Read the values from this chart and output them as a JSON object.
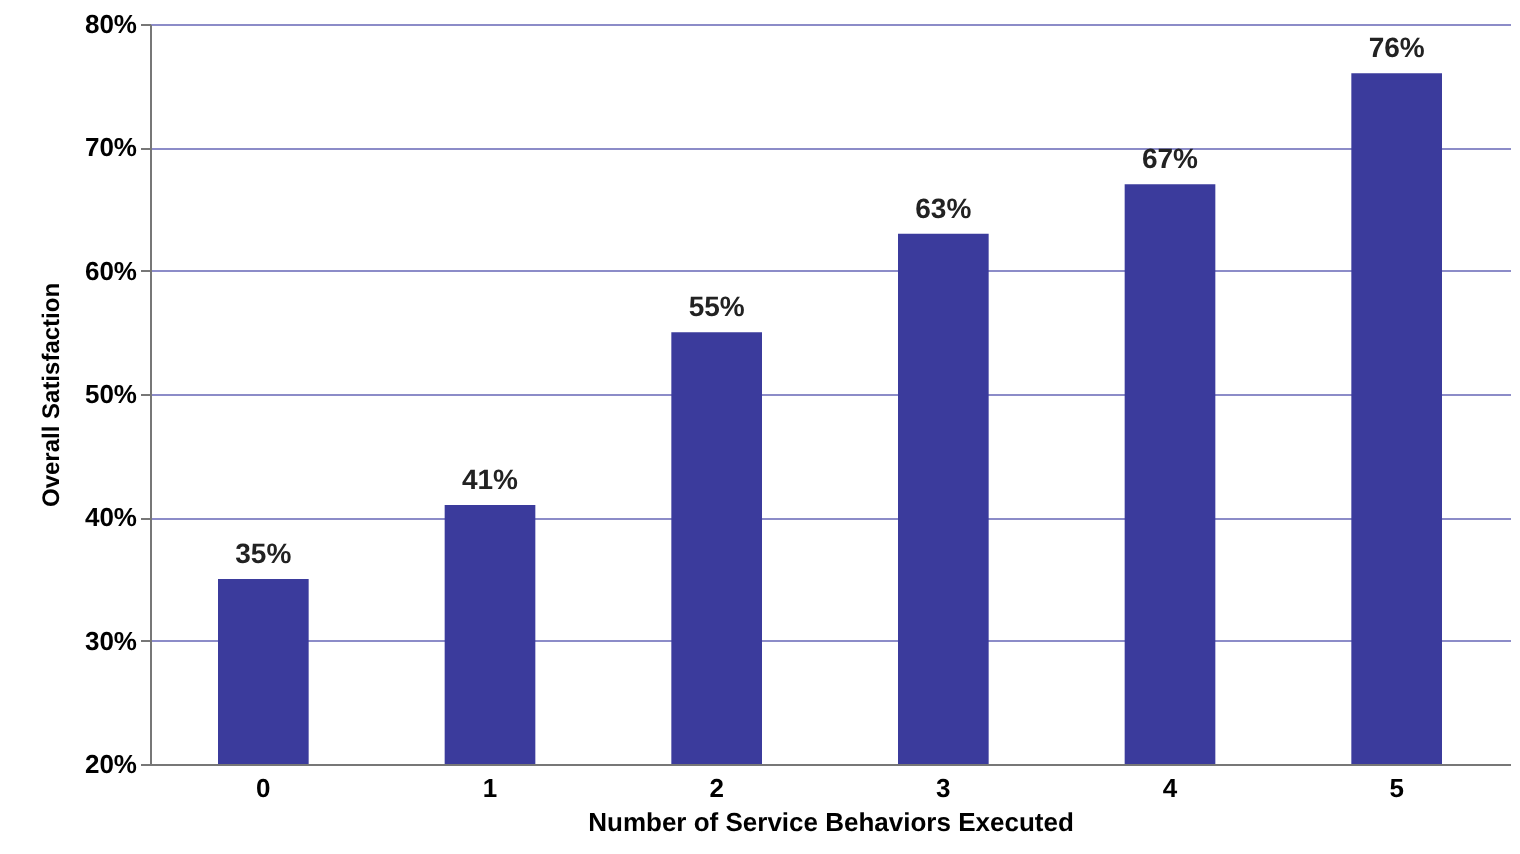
{
  "chart_data": {
    "type": "bar",
    "xlabel": "Number of Service Behaviors Executed",
    "ylabel": "Overall Satisfaction",
    "categories": [
      "0",
      "1",
      "2",
      "3",
      "4",
      "5"
    ],
    "values": [
      35,
      41,
      55,
      63,
      67,
      76
    ],
    "value_labels": [
      "35%",
      "41%",
      "55%",
      "63%",
      "67%",
      "76%"
    ],
    "color": "#3b3b9c",
    "ylim": [
      20,
      80
    ],
    "yticks": [
      {
        "value": 20,
        "label": "20%"
      },
      {
        "value": 30,
        "label": "30%"
      },
      {
        "value": 40,
        "label": "40%"
      },
      {
        "value": 50,
        "label": "50%"
      },
      {
        "value": 60,
        "label": "60%"
      },
      {
        "value": 70,
        "label": "70%"
      },
      {
        "value": 80,
        "label": "80%"
      }
    ],
    "grid": "y"
  }
}
